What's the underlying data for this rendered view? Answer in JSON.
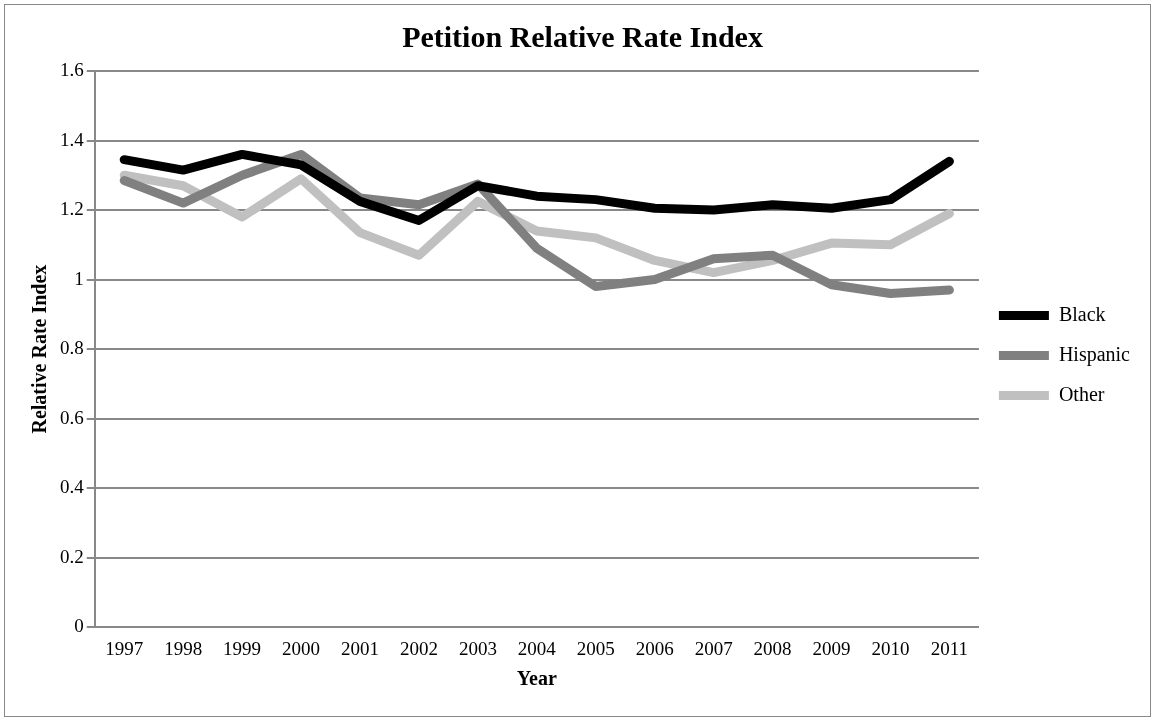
{
  "chart_data": {
    "type": "line",
    "title": "Petition Relative Rate Index",
    "xlabel": "Year",
    "ylabel": "Relative Rate Index",
    "categories": [
      "1997",
      "1998",
      "1999",
      "2000",
      "2001",
      "2002",
      "2003",
      "2004",
      "2005",
      "2006",
      "2007",
      "2008",
      "2009",
      "2010",
      "2011"
    ],
    "series": [
      {
        "name": "Black",
        "color": "#000000",
        "values": [
          1.345,
          1.315,
          1.36,
          1.33,
          1.225,
          1.17,
          1.27,
          1.24,
          1.23,
          1.205,
          1.2,
          1.215,
          1.205,
          1.23,
          1.34
        ]
      },
      {
        "name": "Hispanic",
        "color": "#808080",
        "values": [
          1.285,
          1.22,
          1.3,
          1.36,
          1.235,
          1.215,
          1.275,
          1.09,
          0.98,
          1.0,
          1.06,
          1.07,
          0.985,
          0.96,
          0.97
        ]
      },
      {
        "name": "Other",
        "color": "#c0c0c0",
        "values": [
          1.3,
          1.27,
          1.18,
          1.29,
          1.135,
          1.07,
          1.225,
          1.14,
          1.12,
          1.055,
          1.02,
          1.055,
          1.105,
          1.1,
          1.19
        ]
      }
    ],
    "ylim": [
      0,
      1.6
    ],
    "yticks": [
      0,
      0.2,
      0.4,
      0.6,
      0.8,
      1,
      1.2,
      1.4,
      1.6
    ],
    "grid": "y",
    "legend": "right",
    "marker": "none",
    "line_style": "solid"
  }
}
